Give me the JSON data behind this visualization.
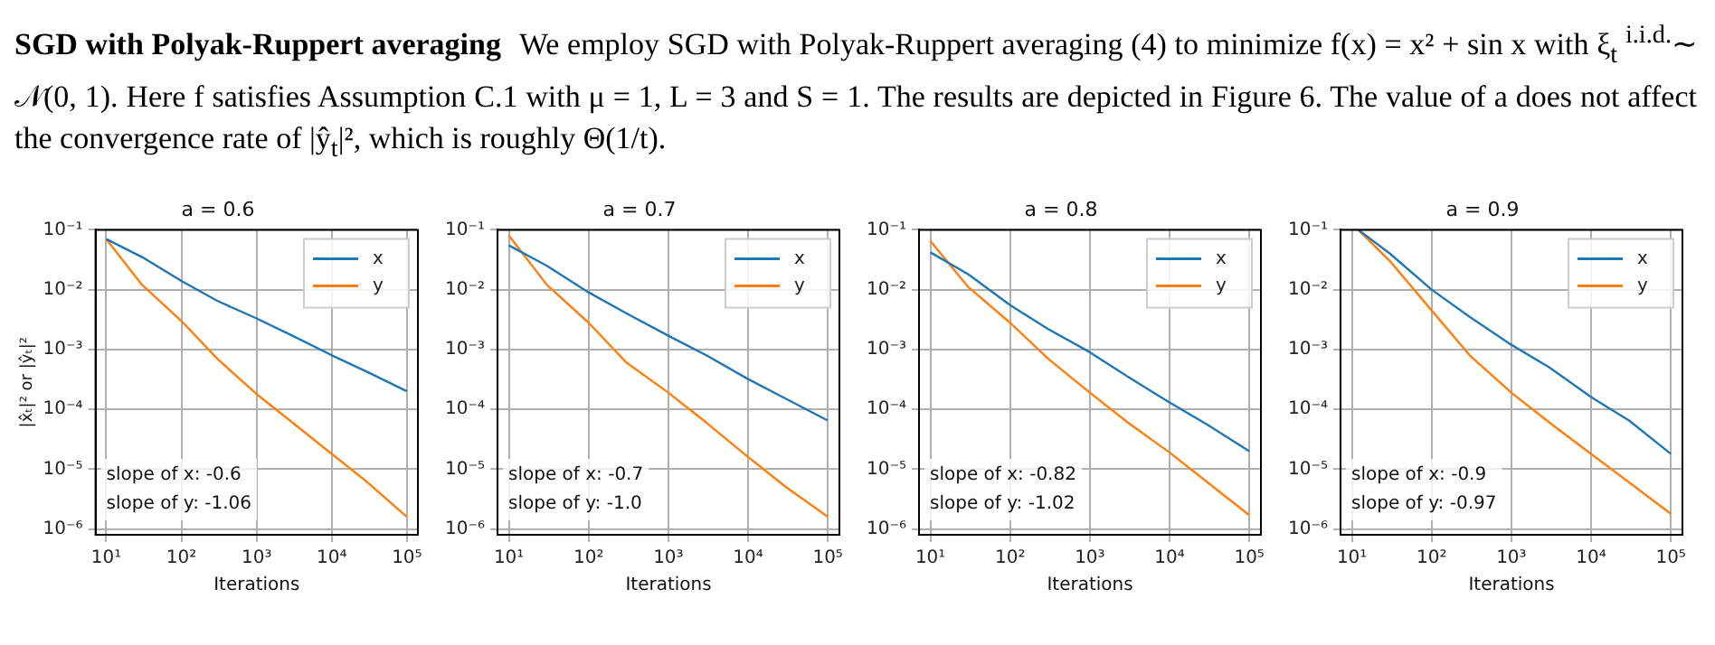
{
  "chart_data": [
    {
      "type": "other",
      "title": "SGD with Polyak-Ruppert averaging",
      "annotations": [
        "We employ SGD with Polyak-Ruppert averaging (4) to minimize f(x) = x² + sin x with ξ$_{t}$ $^{i.i.d.}$∼ 𝒩(0, 1). Here f satisfies Assumption C.1 with μ = 1, L = 3 and S = 1. The results are depicted in Figure 6. The value of a does not affect the convergence rate of |ŷ$_{t}$|², which is roughly Θ(1/t)."
      ]
    },
    {
      "type": "line",
      "title": "a = 0.6",
      "xlabel": "Iterations",
      "ylabel": "|x̂ₜ|² or |ŷₜ|²",
      "log": "xy",
      "grid": true,
      "legend": "top right",
      "xlim": [
        7.2,
        140000
      ],
      "ylim": [
        8e-07,
        0.1
      ],
      "xticks": [
        {
          "value": 10,
          "label": "10¹"
        },
        {
          "value": 100,
          "label": "10²"
        },
        {
          "value": 1000,
          "label": "10³"
        },
        {
          "value": 10000,
          "label": "10⁴"
        },
        {
          "value": 100000,
          "label": "10⁵"
        }
      ],
      "yticks": [
        {
          "value": 1e-06,
          "label": "10⁻⁶"
        },
        {
          "value": 1e-05,
          "label": "10⁻⁵"
        },
        {
          "value": 0.0001,
          "label": "10⁻⁴"
        },
        {
          "value": 0.001,
          "label": "10⁻³"
        },
        {
          "value": 0.01,
          "label": "10⁻²"
        },
        {
          "value": 0.1,
          "label": "10⁻¹"
        }
      ],
      "series": [
        {
          "name": "x",
          "color": "#1f77b4",
          "x": [
            10,
            30,
            100,
            300,
            1000,
            3000,
            10000,
            30000,
            100000
          ],
          "values": [
            0.07,
            0.035,
            0.014,
            0.0065,
            0.0033,
            0.0017,
            0.0008,
            0.00042,
            0.0002
          ]
        },
        {
          "name": "y",
          "color": "#ff7f0e",
          "x": [
            10,
            30,
            100,
            300,
            1000,
            3000,
            10000,
            30000,
            100000
          ],
          "values": [
            0.07,
            0.012,
            0.003,
            0.0007,
            0.00018,
            6e-05,
            1.8e-05,
            6e-06,
            1.6e-06
          ]
        }
      ],
      "annotations": [
        "slope of x: -0.6",
        "slope of y: -1.06"
      ]
    },
    {
      "type": "line",
      "title": "a = 0.7",
      "xlabel": "Iterations",
      "log": "xy",
      "grid": true,
      "legend": "top right",
      "xlim": [
        7.2,
        140000
      ],
      "ylim": [
        8e-07,
        0.1
      ],
      "xticks": [
        {
          "value": 10,
          "label": "10¹"
        },
        {
          "value": 100,
          "label": "10²"
        },
        {
          "value": 1000,
          "label": "10³"
        },
        {
          "value": 10000,
          "label": "10⁴"
        },
        {
          "value": 100000,
          "label": "10⁵"
        }
      ],
      "yticks": [
        {
          "value": 1e-06,
          "label": "10⁻⁶"
        },
        {
          "value": 1e-05,
          "label": "10⁻⁵"
        },
        {
          "value": 0.0001,
          "label": "10⁻⁴"
        },
        {
          "value": 0.001,
          "label": "10⁻³"
        },
        {
          "value": 0.01,
          "label": "10⁻²"
        },
        {
          "value": 0.1,
          "label": "10⁻¹"
        }
      ],
      "series": [
        {
          "name": "x",
          "color": "#1f77b4",
          "x": [
            10,
            30,
            100,
            300,
            1000,
            3000,
            10000,
            30000,
            100000
          ],
          "values": [
            0.055,
            0.025,
            0.009,
            0.004,
            0.0017,
            0.0008,
            0.00032,
            0.00015,
            6.5e-05
          ]
        },
        {
          "name": "y",
          "color": "#ff7f0e",
          "x": [
            10,
            30,
            100,
            300,
            1000,
            3000,
            10000,
            30000,
            100000
          ],
          "values": [
            0.08,
            0.012,
            0.0028,
            0.0006,
            0.00019,
            6e-05,
            1.6e-05,
            5e-06,
            1.6e-06
          ]
        }
      ],
      "annotations": [
        "slope of x: -0.7",
        "slope of y: -1.0"
      ]
    },
    {
      "type": "line",
      "title": "a = 0.8",
      "xlabel": "Iterations",
      "log": "xy",
      "grid": true,
      "legend": "top right",
      "xlim": [
        7.2,
        140000
      ],
      "ylim": [
        8e-07,
        0.1
      ],
      "xticks": [
        {
          "value": 10,
          "label": "10¹"
        },
        {
          "value": 100,
          "label": "10²"
        },
        {
          "value": 1000,
          "label": "10³"
        },
        {
          "value": 10000,
          "label": "10⁴"
        },
        {
          "value": 100000,
          "label": "10⁵"
        }
      ],
      "yticks": [
        {
          "value": 1e-06,
          "label": "10⁻⁶"
        },
        {
          "value": 1e-05,
          "label": "10⁻⁵"
        },
        {
          "value": 0.0001,
          "label": "10⁻⁴"
        },
        {
          "value": 0.001,
          "label": "10⁻³"
        },
        {
          "value": 0.01,
          "label": "10⁻²"
        },
        {
          "value": 0.1,
          "label": "10⁻¹"
        }
      ],
      "series": [
        {
          "name": "x",
          "color": "#1f77b4",
          "x": [
            10,
            30,
            100,
            300,
            1000,
            3000,
            10000,
            30000,
            100000
          ],
          "values": [
            0.042,
            0.018,
            0.0055,
            0.0022,
            0.0009,
            0.00035,
            0.00013,
            5.5e-05,
            2e-05
          ]
        },
        {
          "name": "y",
          "color": "#ff7f0e",
          "x": [
            10,
            30,
            100,
            300,
            1000,
            3000,
            10000,
            30000,
            100000
          ],
          "values": [
            0.065,
            0.011,
            0.0028,
            0.0007,
            0.00019,
            6e-05,
            1.9e-05,
            6e-06,
            1.7e-06
          ]
        }
      ],
      "annotations": [
        "slope of x: -0.82",
        "slope of y: -1.02"
      ]
    },
    {
      "type": "line",
      "title": "a = 0.9",
      "xlabel": "Iterations",
      "log": "xy",
      "grid": true,
      "legend": "top right",
      "xlim": [
        7.2,
        140000
      ],
      "ylim": [
        8e-07,
        0.1
      ],
      "xticks": [
        {
          "value": 10,
          "label": "10¹"
        },
        {
          "value": 100,
          "label": "10²"
        },
        {
          "value": 1000,
          "label": "10³"
        },
        {
          "value": 10000,
          "label": "10⁴"
        },
        {
          "value": 100000,
          "label": "10⁵"
        }
      ],
      "yticks": [
        {
          "value": 1e-06,
          "label": "10⁻⁶"
        },
        {
          "value": 1e-05,
          "label": "10⁻⁵"
        },
        {
          "value": 0.0001,
          "label": "10⁻⁴"
        },
        {
          "value": 0.001,
          "label": "10⁻³"
        },
        {
          "value": 0.01,
          "label": "10⁻²"
        },
        {
          "value": 0.1,
          "label": "10⁻¹"
        }
      ],
      "series": [
        {
          "name": "x",
          "color": "#1f77b4",
          "x": [
            12,
            30,
            100,
            300,
            1000,
            3000,
            10000,
            30000,
            100000
          ],
          "values": [
            0.1,
            0.04,
            0.01,
            0.0035,
            0.0012,
            0.0005,
            0.00016,
            6.5e-05,
            1.8e-05
          ]
        },
        {
          "name": "y",
          "color": "#ff7f0e",
          "x": [
            12,
            30,
            100,
            300,
            1000,
            3000,
            10000,
            30000,
            100000
          ],
          "values": [
            0.1,
            0.03,
            0.0045,
            0.0008,
            0.00019,
            6e-05,
            1.8e-05,
            6e-06,
            1.8e-06
          ]
        }
      ],
      "annotations": [
        "slope of x: -0.9",
        "slope of y: -0.97"
      ]
    }
  ]
}
